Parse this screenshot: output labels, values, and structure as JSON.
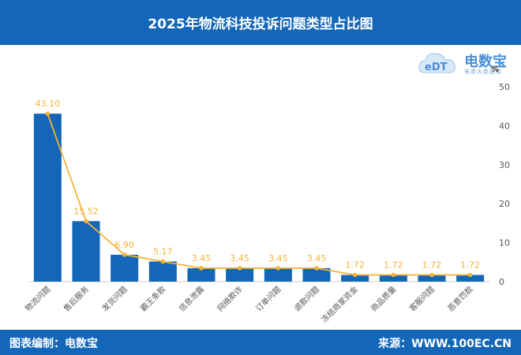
{
  "header": {
    "title": "2025年物流科技投诉问题类型占比图"
  },
  "logo": {
    "brand": "电数宝",
    "sub": "电商大数据库",
    "mark": "eDT"
  },
  "footer": {
    "left": "图表编制：电数宝",
    "right": "来源：WWW.100EC.CN"
  },
  "colors": {
    "bar": "#1467b8",
    "line": "#f5b335",
    "label": "#f5b335",
    "header": "#1467b8"
  },
  "chart_data": {
    "type": "bar",
    "title": "2025年物流科技投诉问题类型占比图",
    "unit": "%",
    "categories": [
      "物流问题",
      "售后服务",
      "发货问题",
      "霸王条款",
      "信息泄露",
      "网络欺诈",
      "订单问题",
      "退款问题",
      "冻结商家资金",
      "商品质量",
      "客服问题",
      "恶意罚款"
    ],
    "values": [
      43.1,
      15.52,
      6.9,
      5.17,
      3.45,
      3.45,
      3.45,
      3.45,
      1.72,
      1.72,
      1.72,
      1.72
    ],
    "value_labels": [
      "43.10",
      "15.52",
      "6.90",
      "5.17",
      "3.45",
      "3.45",
      "3.45",
      "3.45",
      "1.72",
      "1.72",
      "1.72",
      "1.72"
    ],
    "ylim": [
      0,
      50
    ],
    "yticks": [
      0,
      10,
      20,
      30,
      40,
      50
    ],
    "overlay": "line",
    "y_axis_side": "right",
    "grid": false,
    "legend": "none"
  }
}
